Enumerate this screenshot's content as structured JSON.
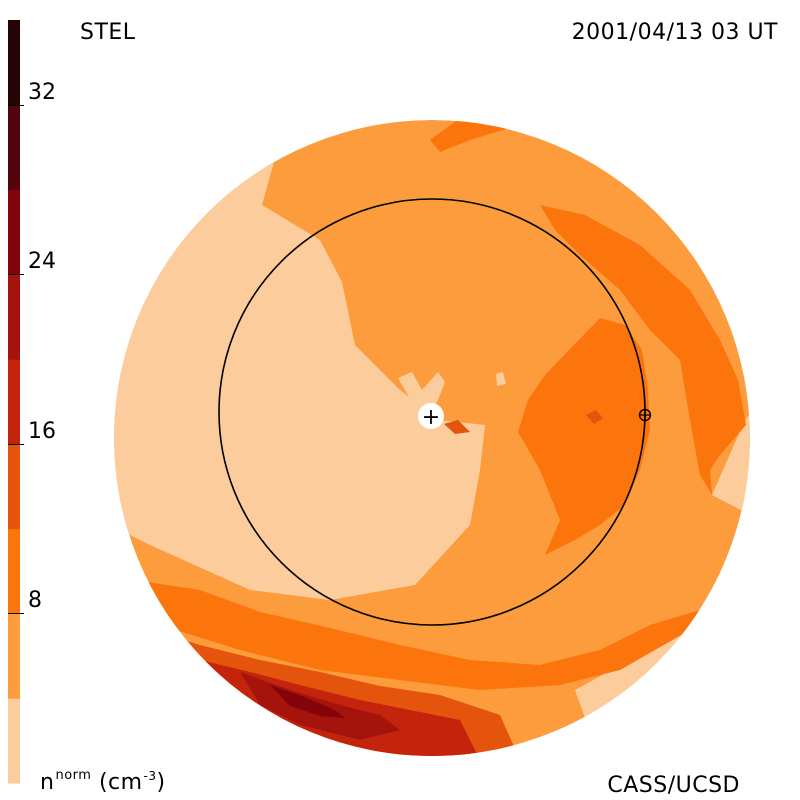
{
  "header": {
    "instrument": "STEL",
    "timestamp": "2001/04/13 03 UT"
  },
  "footer": {
    "credit": "CASS/UCSD",
    "units_base": "n",
    "units_sup": "norm",
    "units_open": "(cm",
    "units_exp": "-3",
    "units_close": ")"
  },
  "colorbar": {
    "ticks": [
      "32",
      "24",
      "16",
      "8"
    ],
    "tick_values": [
      32,
      24,
      16,
      8
    ],
    "range": [
      0,
      36
    ],
    "bands": [
      {
        "from": 0,
        "to": 4,
        "color": "#fccc9c"
      },
      {
        "from": 4,
        "to": 8,
        "color": "#fc9c3c"
      },
      {
        "from": 8,
        "to": 12,
        "color": "#fc740c"
      },
      {
        "from": 12,
        "to": 16,
        "color": "#e4540c"
      },
      {
        "from": 16,
        "to": 20,
        "color": "#c4240c"
      },
      {
        "from": 20,
        "to": 24,
        "color": "#a4140c"
      },
      {
        "from": 24,
        "to": 28,
        "color": "#84040c"
      },
      {
        "from": 28,
        "to": 32,
        "color": "#54040c"
      },
      {
        "from": 32,
        "to": 36,
        "color": "#240404"
      }
    ]
  },
  "map": {
    "colors": {
      "pale": "#fccc9c",
      "light": "#fc9c3c",
      "mid": "#fc740c",
      "deep": "#e4540c",
      "red": "#c4240c",
      "darkred": "#a4140c",
      "maroon": "#84040c"
    },
    "markers": {
      "sun_symbol": "+",
      "earth_symbol": "⊕"
    }
  }
}
